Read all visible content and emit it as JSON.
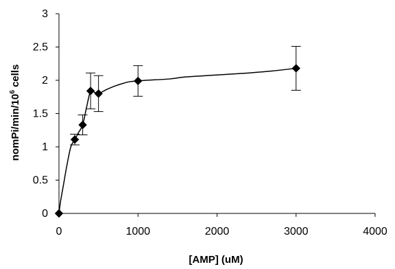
{
  "chart_data": {
    "type": "scatter",
    "xlabel": "[AMP] (uM)",
    "ylabel": {
      "prefix": "nomPi/min/10",
      "superscript": "6",
      "suffix": " cells"
    },
    "xlim": [
      0,
      4000
    ],
    "ylim": [
      0,
      3
    ],
    "x_ticks": [
      "0",
      "1000",
      "2000",
      "3000",
      "4000"
    ],
    "y_ticks": [
      "0",
      "0.5",
      "1",
      "1.5",
      "2",
      "2.5",
      "3"
    ],
    "grid": false,
    "legend": "none",
    "marker": "diamond",
    "marker_color": "#000000",
    "points": [
      {
        "x": 0,
        "y": 0,
        "err": 0
      },
      {
        "x": 200,
        "y": 1.11,
        "err": 0.08
      },
      {
        "x": 300,
        "y": 1.33,
        "err": 0.15
      },
      {
        "x": 400,
        "y": 1.84,
        "err": 0.27
      },
      {
        "x": 500,
        "y": 1.8,
        "err": 0.27
      },
      {
        "x": 1000,
        "y": 1.99,
        "err": 0.23
      },
      {
        "x": 3000,
        "y": 2.18,
        "err": 0.33
      }
    ],
    "fit_curve": {
      "type": "smooth",
      "x": [
        0,
        20,
        60,
        100,
        150,
        200,
        250,
        300,
        350,
        400,
        450,
        500,
        600,
        700,
        800,
        900,
        1000,
        1100,
        1400,
        1600,
        2000,
        2400,
        2700,
        3000
      ],
      "y": [
        0,
        0.18,
        0.45,
        0.72,
        1.0,
        1.11,
        1.22,
        1.33,
        1.6,
        1.84,
        1.82,
        1.8,
        1.86,
        1.91,
        1.95,
        1.98,
        1.99,
        2.0,
        2.02,
        2.05,
        2.08,
        2.11,
        2.14,
        2.18
      ]
    }
  }
}
